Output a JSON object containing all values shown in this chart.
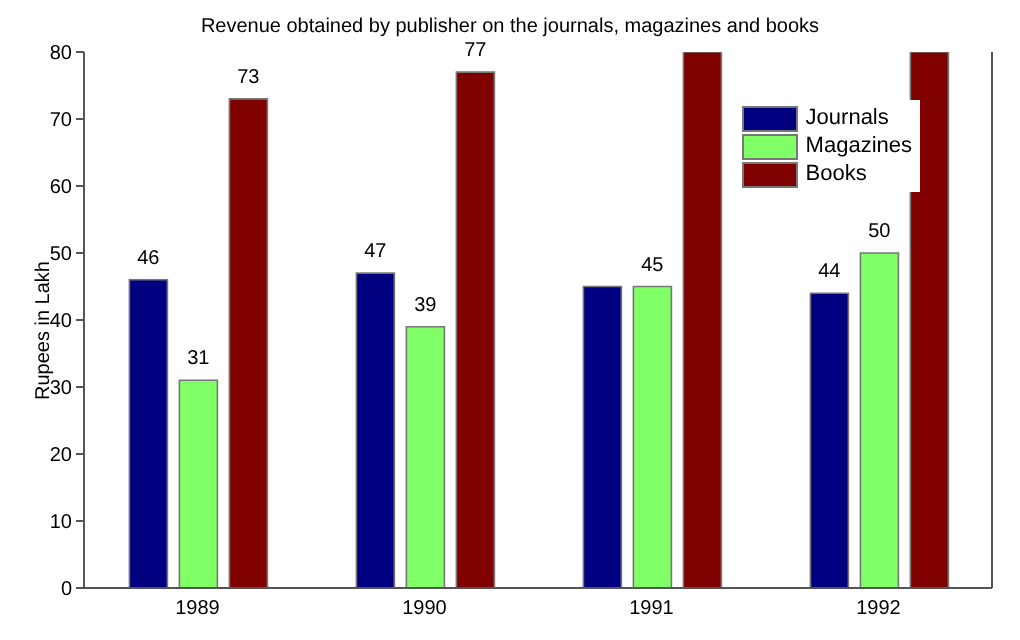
{
  "chart_data": {
    "type": "bar",
    "title": "Revenue obtained by publisher on the journals, magazines and books",
    "ylabel": "Rupees in Lakh",
    "categories": [
      "1989",
      "1990",
      "1991",
      "1992"
    ],
    "series": [
      {
        "name": "Journals",
        "color": "#000080",
        "values": [
          46,
          47,
          45,
          44
        ],
        "value_labels": [
          "46",
          "47",
          null,
          "44"
        ]
      },
      {
        "name": "Magazines",
        "color": "#80ff66",
        "values": [
          31,
          39,
          45,
          50
        ],
        "value_labels": [
          "31",
          "39",
          "45",
          "50"
        ]
      },
      {
        "name": "Books",
        "color": "#800000",
        "values": [
          73,
          77,
          80,
          80
        ],
        "value_labels": [
          "73",
          "77",
          null,
          null
        ]
      }
    ],
    "ylim": [
      0,
      80
    ],
    "yticks": [
      0,
      10,
      20,
      30,
      40,
      50,
      60,
      70,
      80
    ],
    "grid": false,
    "legend": "top right"
  }
}
